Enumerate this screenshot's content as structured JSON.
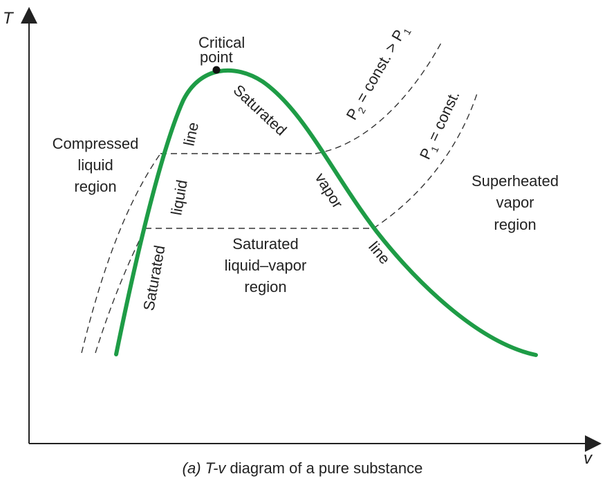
{
  "axes": {
    "y_label": "T",
    "x_label": "v"
  },
  "dome": {
    "critical_point_line1": "Critical",
    "critical_point_line2": "point"
  },
  "labels": {
    "sat_liquid_1": "Saturated",
    "sat_liquid_2": "liquid",
    "sat_liquid_3": "line",
    "sat_vapor_1": "Saturated",
    "sat_vapor_2": "vapor",
    "sat_vapor_3": "line",
    "compressed_1": "Compressed",
    "compressed_2": "liquid",
    "compressed_3": "region",
    "mixture_1": "Saturated",
    "mixture_2": "liquid–vapor",
    "mixture_3": "region",
    "superheated_1": "Superheated",
    "superheated_2": "vapor",
    "superheated_3": "region"
  },
  "isobars": {
    "p2_sym": "P",
    "p2_sub": "2",
    "p2_text": " = const. > P",
    "p2_sub2": "1",
    "p1_sym": "P",
    "p1_sub": "1",
    "p1_text": " = const."
  },
  "caption": {
    "part": "(a)",
    "tv": "T-v",
    "text": " diagram of a pure substance"
  },
  "colors": {
    "dome": "#1e9c46",
    "axis": "#222222",
    "dashed": "#333333"
  }
}
